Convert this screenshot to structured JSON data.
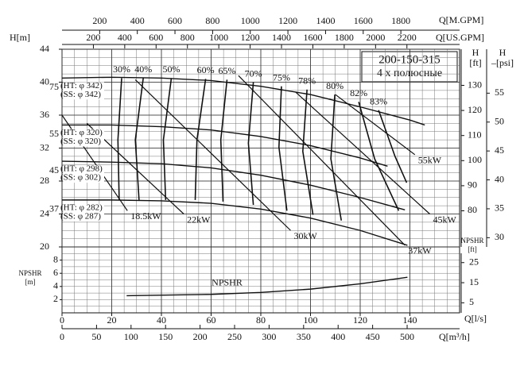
{
  "chart_data": {
    "type": "line",
    "title": "200-150-315",
    "subtitle": "4 х полюсные",
    "xlabel": "Q[l/s]",
    "xlim": [
      0,
      160
    ],
    "xticks": [
      0,
      20,
      40,
      60,
      80,
      100,
      120,
      140
    ],
    "ylabel": "H[m]",
    "ylim": [
      20,
      44
    ],
    "yticks": [
      20,
      24,
      28,
      32,
      36,
      40,
      44
    ],
    "grid": true,
    "x_axes": [
      {
        "label": "Q[m³/h]",
        "lim": [
          0,
          576
        ],
        "ticks": [
          0,
          50,
          100,
          150,
          200,
          250,
          300,
          350,
          400,
          450,
          500
        ]
      },
      {
        "label": "Q[M.GPM]",
        "lim": [
          0,
          2112
        ],
        "ticks": [
          200,
          400,
          600,
          800,
          1000,
          1200,
          1400,
          1600,
          1800
        ]
      },
      {
        "label": "Q[US.GPM]",
        "lim": [
          0,
          2536
        ],
        "ticks": [
          200,
          400,
          600,
          800,
          1000,
          1200,
          1400,
          1600,
          1800,
          2000,
          2200
        ]
      }
    ],
    "y_axes": [
      {
        "label": [
          "H",
          "[ft]"
        ],
        "lim": [
          65.6,
          144.4
        ],
        "ticks": [
          80,
          90,
          100,
          110,
          120,
          130
        ]
      },
      {
        "label": [
          "H",
          "–[psi]"
        ],
        "lim": [
          28.4,
          62.6
        ],
        "ticks": [
          30,
          35,
          40,
          45,
          50,
          55
        ]
      }
    ],
    "series": [
      {
        "name": "75",
        "labels": [
          "(HT: φ 342)",
          "(SS: φ 342)"
        ],
        "color": "#111",
        "x": [
          0,
          20,
          40,
          60,
          80,
          100,
          120,
          140,
          146
        ],
        "values": [
          40.5,
          40.6,
          40.5,
          40.2,
          39.5,
          38.5,
          37,
          35.4,
          34.8
        ]
      },
      {
        "name": "55",
        "labels": [
          "(HT: φ 320)",
          "(SS: φ 320)"
        ],
        "color": "#111",
        "x": [
          0,
          20,
          40,
          60,
          80,
          100,
          120,
          131
        ],
        "values": [
          34.8,
          34.8,
          34.6,
          34.2,
          33.4,
          32.3,
          30.8,
          29.8
        ]
      },
      {
        "name": "45",
        "labels": [
          "(HT: φ 298)",
          "(SS: φ 302)"
        ],
        "color": "#111",
        "x": [
          0,
          20,
          40,
          60,
          80,
          100,
          120,
          138
        ],
        "values": [
          30.4,
          30.3,
          30.1,
          29.6,
          28.7,
          27.5,
          26,
          24.5
        ]
      },
      {
        "name": "37",
        "labels": [
          "(HT: φ 282)",
          "(SS: φ 287)"
        ],
        "color": "#111",
        "x": [
          0,
          20,
          40,
          60,
          80,
          100,
          120,
          139
        ],
        "values": [
          25.7,
          25.7,
          25.6,
          25.3,
          24.6,
          23.5,
          22,
          20.2
        ]
      }
    ],
    "efficiency": [
      {
        "name": "30%",
        "x": [
          24,
          22.5,
          23
        ],
        "values": [
          40.5,
          33,
          25.7
        ]
      },
      {
        "name": "40%",
        "x": [
          32.7,
          29.5,
          31
        ],
        "values": [
          40.5,
          33,
          25.7
        ]
      },
      {
        "name": "50%",
        "x": [
          44,
          40.8,
          41.7
        ],
        "values": [
          40.5,
          33,
          25.7
        ]
      },
      {
        "name": "60%",
        "x": [
          57.8,
          54.3,
          53.6
        ],
        "values": [
          40.4,
          33,
          25.7
        ]
      },
      {
        "name": "65%",
        "x": [
          66.4,
          63.9,
          64.8
        ],
        "values": [
          40.3,
          33,
          25.5
        ]
      },
      {
        "name": "70%",
        "x": [
          77,
          75,
          77
        ],
        "values": [
          40,
          32.6,
          25.1
        ]
      },
      {
        "name": "75%",
        "x": [
          88.3,
          87.3,
          90.5
        ],
        "values": [
          39.5,
          32.1,
          24.4
        ]
      },
      {
        "name": "78%",
        "x": [
          98.6,
          96.9,
          101
        ],
        "values": [
          39.1,
          31.6,
          23.9
        ]
      },
      {
        "name": "80%",
        "x": [
          109.8,
          108.2,
          112.4
        ],
        "values": [
          38.5,
          30.7,
          23.2
        ]
      },
      {
        "name": "82%",
        "x": [
          119.4,
          125.8,
          135.5
        ],
        "values": [
          37.6,
          30.7,
          24.4
        ]
      },
      {
        "name": "83%",
        "x": [
          127.4,
          134,
          138.7
        ],
        "values": [
          36.6,
          31,
          27.8
        ]
      }
    ],
    "power": [
      {
        "name": "18.5kW",
        "x": [
          0,
          26.3
        ],
        "values": [
          36,
          24.4
        ]
      },
      {
        "name": "22kW",
        "x": [
          10,
          49
        ],
        "values": [
          35,
          24
        ]
      },
      {
        "name": "30kW",
        "x": [
          29.5,
          92
        ],
        "values": [
          40.3,
          22
        ]
      },
      {
        "name": "37kW",
        "x": [
          71,
          138
        ],
        "values": [
          40.8,
          20.2
        ]
      },
      {
        "name": "45kW",
        "x": [
          94,
          148
        ],
        "values": [
          38.8,
          24
        ]
      },
      {
        "name": "55kW",
        "x": [
          110,
          142
        ],
        "values": [
          38.5,
          31.2
        ]
      }
    ],
    "npshr": {
      "name": "NPSHR",
      "ylabel": [
        "NPSHR",
        "[m]"
      ],
      "ylim": [
        0,
        10
      ],
      "yticks": [
        2,
        4,
        6,
        8
      ],
      "ft_axis": {
        "label": [
          "NPSHR",
          "[ft]"
        ],
        "lim": [
          0,
          32.8
        ],
        "ticks": [
          5,
          15,
          25
        ]
      },
      "color": "#111",
      "x": [
        26,
        60,
        80,
        100,
        120,
        139
      ],
      "values": [
        2.6,
        2.8,
        3.1,
        3.6,
        4.4,
        5.4
      ]
    }
  }
}
